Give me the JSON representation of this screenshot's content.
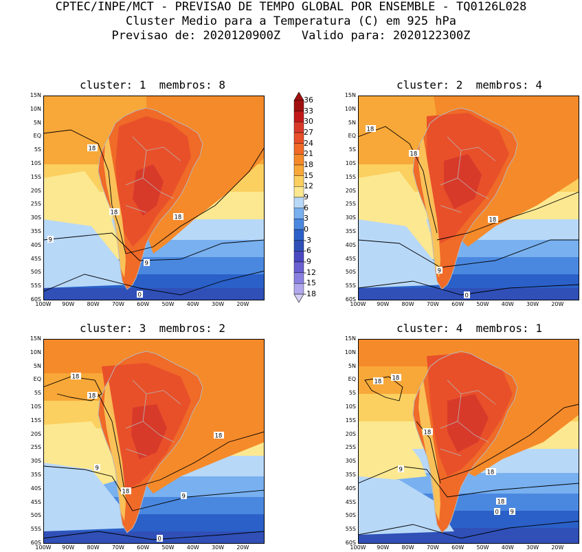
{
  "header": {
    "line1": "CPTEC/INPE/MCT - PREVISAO DE TEMPO GLOBAL POR ENSEMBLE - TQ0126L028",
    "line2": "Cluster Medio para a Temperatura (C) em 925 hPa",
    "line3": "Previsao de: 2020120900Z   Valido para: 2020122300Z"
  },
  "panels": [
    {
      "title": "cluster: 1  membros: 8",
      "contour_labels": [
        "18",
        "18",
        "18",
        "9",
        "9",
        "0"
      ]
    },
    {
      "title": "cluster: 2  membros: 4",
      "contour_labels": [
        "18",
        "18",
        "18",
        "9",
        "0"
      ]
    },
    {
      "title": "cluster: 3  membros: 2",
      "contour_labels": [
        "18",
        "18",
        "18",
        "9",
        "18",
        "9",
        "0"
      ]
    },
    {
      "title": "cluster: 4  membros: 1",
      "contour_labels": [
        "18",
        "18",
        "18",
        "18",
        "9",
        "18",
        "9",
        "0"
      ]
    }
  ],
  "lat_labels": [
    "15N",
    "10N",
    "5N",
    "EQ",
    "5S",
    "10S",
    "15S",
    "20S",
    "25S",
    "30S",
    "35S",
    "40S",
    "45S",
    "50S",
    "55S",
    "60S"
  ],
  "lon_labels": [
    "100W",
    "90W",
    "80W",
    "70W",
    "60W",
    "50W",
    "40W",
    "30W",
    "20W"
  ],
  "colorbar": {
    "labels": [
      "36",
      "33",
      "30",
      "27",
      "24",
      "21",
      "18",
      "15",
      "12",
      "9",
      "6",
      "3",
      "0",
      "-3",
      "-6",
      "-9",
      "-12",
      "-15",
      "-18"
    ],
    "colors": [
      "#a01010",
      "#c01818",
      "#d83a2a",
      "#e8502a",
      "#f06a28",
      "#f58a2a",
      "#f8a838",
      "#fbd060",
      "#fce890",
      "#b8d8f8",
      "#78b0f0",
      "#4a88e0",
      "#2a60c8",
      "#3050b8",
      "#4a48c0",
      "#6a60d0",
      "#8a80e0",
      "#b0a8ec",
      "#d4d0f6"
    ]
  }
}
